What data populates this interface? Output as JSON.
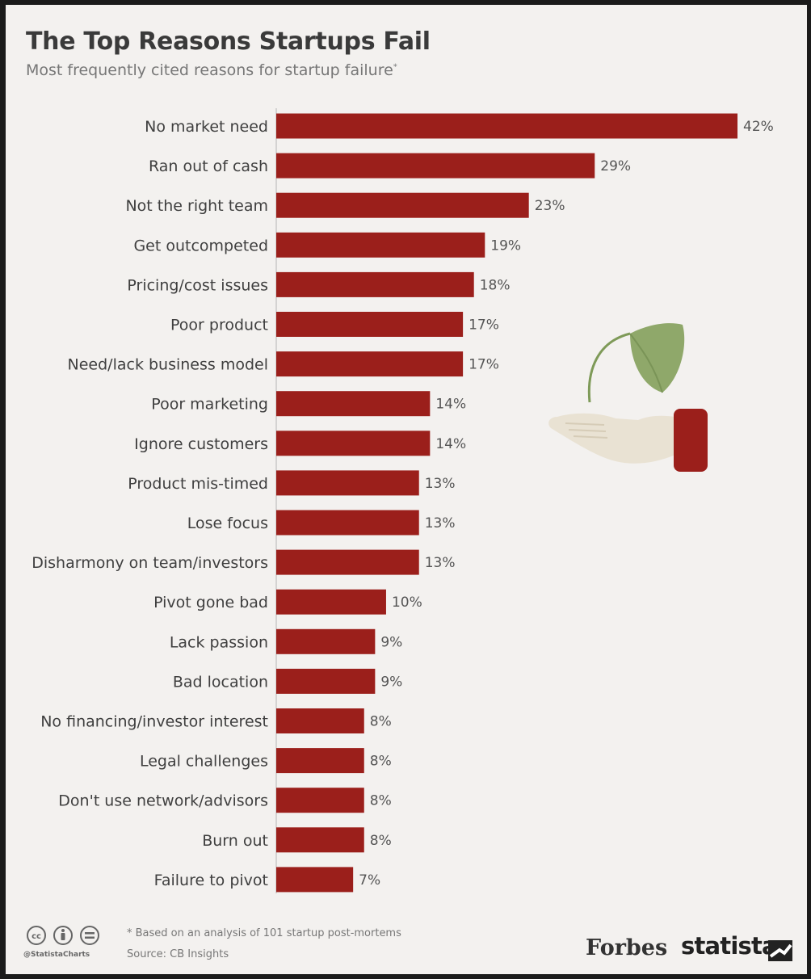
{
  "chart_data": {
    "type": "bar",
    "orientation": "horizontal",
    "title": "The Top Reasons Startups Fail",
    "subtitle": "Most frequently cited reasons for startup failure",
    "subtitle_marker": "*",
    "categories": [
      "No market need",
      "Ran out of cash",
      "Not the right team",
      "Get outcompeted",
      "Pricing/cost issues",
      "Poor product",
      "Need/lack business model",
      "Poor marketing",
      "Ignore customers",
      "Product mis-timed",
      "Lose focus",
      "Disharmony on team/investors",
      "Pivot gone bad",
      "Lack passion",
      "Bad location",
      "No financing/investor interest",
      "Legal challenges",
      "Don't use network/advisors",
      "Burn out",
      "Failure to pivot"
    ],
    "values": [
      42,
      29,
      23,
      19,
      18,
      17,
      17,
      14,
      14,
      13,
      13,
      13,
      10,
      9,
      9,
      8,
      8,
      8,
      8,
      7
    ],
    "value_labels": [
      "42%",
      "29%",
      "23%",
      "19%",
      "18%",
      "17%",
      "17%",
      "14%",
      "14%",
      "13%",
      "13%",
      "13%",
      "10%",
      "9%",
      "9%",
      "8%",
      "8%",
      "8%",
      "8%",
      "7%"
    ],
    "unit": "%",
    "xlim": [
      0,
      42
    ],
    "grid": false,
    "legend": "none",
    "bar_color": "#9b1f1b"
  },
  "footer": {
    "footnote": "* Based on an analysis of 101 startup post-mortems",
    "source": "Source: CB Insights",
    "handle": "@StatistaCharts",
    "forbes_logo": "Forbes",
    "statista_logo": "statista"
  },
  "icons": {
    "license": "creative-commons-icons",
    "illustration": "hand-holding-sprout-icon",
    "brand": "statista-logo-icon"
  },
  "colors": {
    "background": "#f3f1ef",
    "bar": "#9b1f1b",
    "text": "#3a3a3a",
    "muted": "#777777",
    "leaf": "#8fa86a",
    "hand": "#e9e2d3"
  }
}
